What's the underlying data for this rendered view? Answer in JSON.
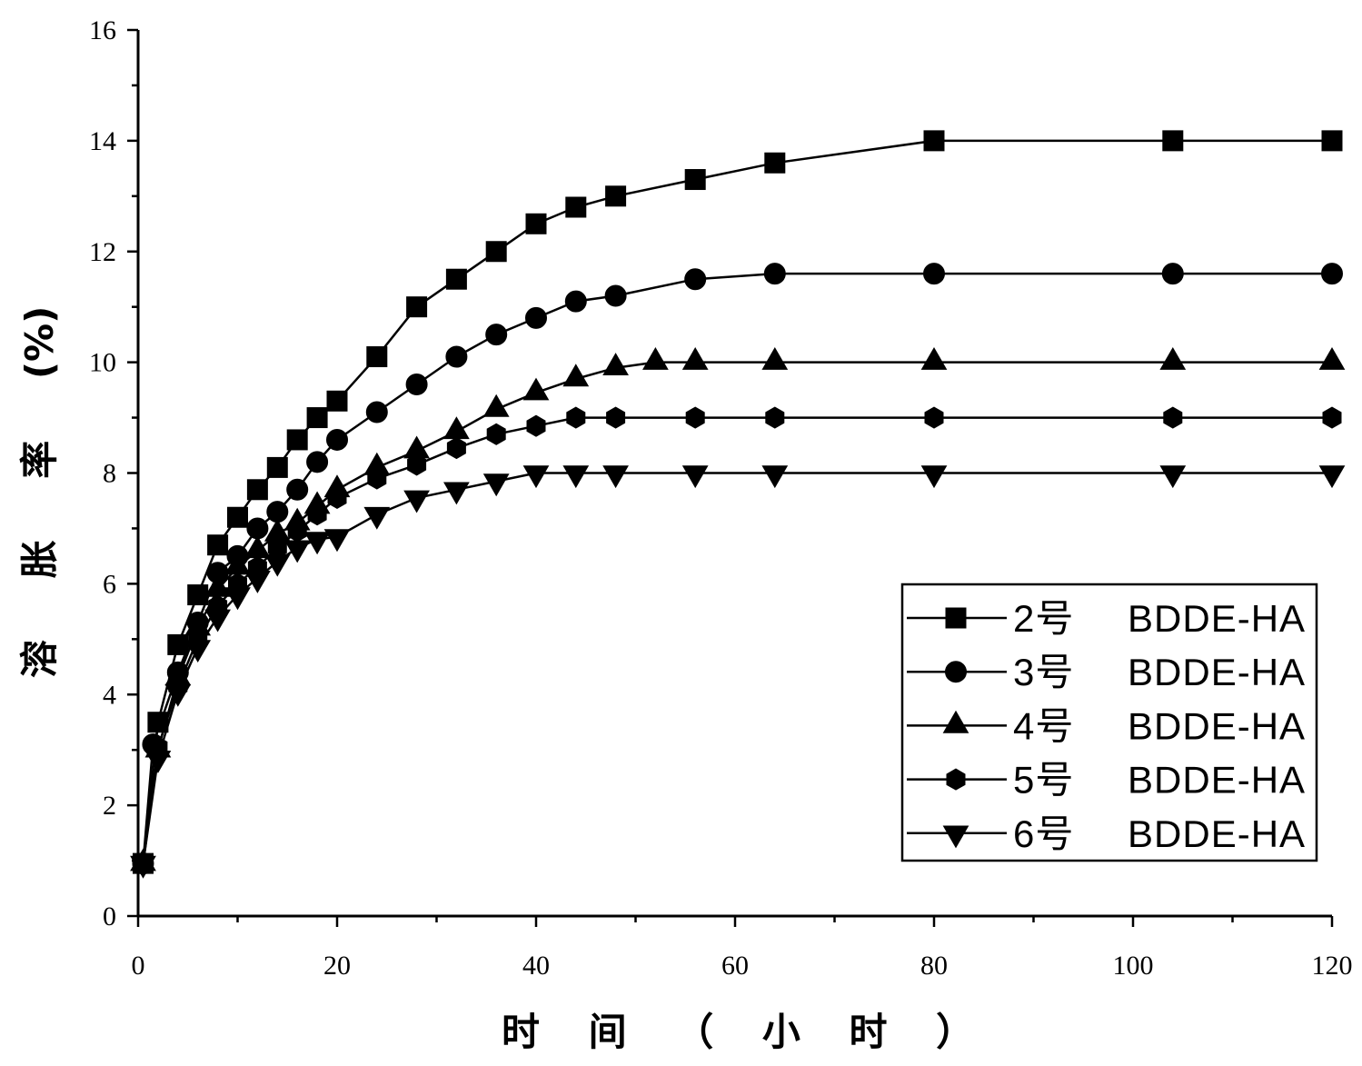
{
  "chart_data": {
    "type": "line",
    "xlabel": "时 间 （ 小 时 ）",
    "ylabel": "溶 胀 率 (%)",
    "xlim": [
      0,
      120
    ],
    "ylim": [
      0,
      16
    ],
    "xticks": [
      0,
      20,
      40,
      60,
      80,
      100,
      120
    ],
    "xtick_labels": [
      "0",
      "20",
      "40",
      "60",
      "80",
      "100",
      "120"
    ],
    "x_minor_ticks": [
      10,
      30,
      50,
      70,
      90,
      110
    ],
    "yticks": [
      0,
      2,
      4,
      6,
      8,
      10,
      12,
      14,
      16
    ],
    "ytick_labels": [
      "0",
      "2",
      "4",
      "6",
      "8",
      "10",
      "12",
      "14",
      "16"
    ],
    "y_minor_ticks": [
      1,
      3,
      5,
      7,
      9,
      11,
      13,
      15
    ],
    "grid": false,
    "legend_position": "bottom-right",
    "series": [
      {
        "name": "2号 BDDE-HA",
        "marker": "square",
        "color": "#000000",
        "x": [
          0.5,
          2,
          4,
          6,
          8,
          10,
          12,
          14,
          16,
          18,
          20,
          24,
          28,
          32,
          36,
          40,
          44,
          48,
          56,
          64,
          80,
          104,
          120
        ],
        "y": [
          0.95,
          3.5,
          4.9,
          5.8,
          6.7,
          7.2,
          7.7,
          8.1,
          8.6,
          9.0,
          9.3,
          10.1,
          11.0,
          11.5,
          12.0,
          12.5,
          12.8,
          13.0,
          13.3,
          13.6,
          14.0,
          14.0,
          14.0
        ]
      },
      {
        "name": "3号 BDDE-HA",
        "marker": "circle",
        "color": "#000000",
        "x": [
          0.5,
          1.5,
          4,
          6,
          8,
          10,
          12,
          14,
          16,
          18,
          20,
          24,
          28,
          32,
          36,
          40,
          44,
          48,
          56,
          64,
          80,
          104,
          120
        ],
        "y": [
          0.95,
          3.1,
          4.4,
          5.3,
          6.2,
          6.5,
          7.0,
          7.3,
          7.7,
          8.2,
          8.6,
          9.1,
          9.6,
          10.1,
          10.5,
          10.8,
          11.1,
          11.2,
          11.5,
          11.6,
          11.6,
          11.6,
          11.6
        ]
      },
      {
        "name": "4号 BDDE-HA",
        "marker": "triangle-up",
        "color": "#000000",
        "x": [
          0.5,
          2,
          4,
          6,
          8,
          10,
          12,
          14,
          16,
          18,
          20,
          24,
          28,
          32,
          36,
          40,
          44,
          48,
          52,
          56,
          64,
          80,
          104,
          120
        ],
        "y": [
          0.95,
          3.0,
          4.3,
          5.2,
          5.9,
          6.3,
          6.6,
          6.9,
          7.1,
          7.4,
          7.7,
          8.1,
          8.4,
          8.75,
          9.15,
          9.45,
          9.7,
          9.9,
          10.0,
          10.0,
          10.0,
          10.0,
          10.0,
          10.0
        ]
      },
      {
        "name": "5号 BDDE-HA",
        "marker": "hexagon",
        "color": "#000000",
        "x": [
          0.5,
          2,
          4,
          6,
          8,
          10,
          12,
          14,
          16,
          18,
          20,
          24,
          28,
          32,
          36,
          40,
          44,
          48,
          56,
          64,
          80,
          104,
          120
        ],
        "y": [
          0.95,
          3.05,
          4.15,
          5.0,
          5.6,
          6.0,
          6.3,
          6.65,
          6.95,
          7.25,
          7.55,
          7.9,
          8.15,
          8.45,
          8.7,
          8.85,
          9.0,
          9.0,
          9.0,
          9.0,
          9.0,
          9.0,
          9.0
        ]
      },
      {
        "name": "6号 BDDE-HA",
        "marker": "triangle-down",
        "color": "#000000",
        "x": [
          0.5,
          2,
          4,
          6,
          8,
          10,
          12,
          14,
          16,
          18,
          20,
          24,
          28,
          32,
          36,
          40,
          44,
          48,
          56,
          64,
          80,
          104,
          120
        ],
        "y": [
          0.95,
          2.85,
          4.05,
          4.85,
          5.4,
          5.8,
          6.1,
          6.4,
          6.65,
          6.8,
          6.85,
          7.25,
          7.55,
          7.7,
          7.85,
          8.0,
          8.0,
          8.0,
          8.0,
          8.0,
          8.0,
          8.0,
          8.0
        ]
      }
    ]
  }
}
